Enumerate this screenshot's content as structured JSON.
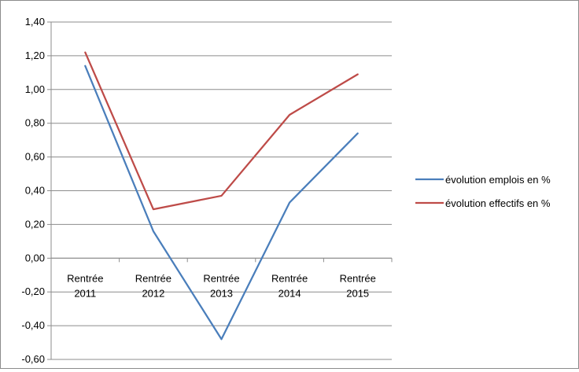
{
  "chart_data": {
    "type": "line",
    "categories": [
      [
        "Rentrée",
        "2011"
      ],
      [
        "Rentrée",
        "2012"
      ],
      [
        "Rentrée",
        "2013"
      ],
      [
        "Rentrée",
        "2014"
      ],
      [
        "Rentrée",
        "2015"
      ]
    ],
    "series": [
      {
        "name": "évolution emplois en %",
        "color": "#4a7ebb",
        "values": [
          1.14,
          0.16,
          -0.48,
          0.33,
          0.74
        ]
      },
      {
        "name": "évolution effectifs en %",
        "color": "#be4b48",
        "values": [
          1.22,
          0.29,
          0.37,
          0.85,
          1.09
        ]
      }
    ],
    "y_ticks": [
      "1,40",
      "1,20",
      "1,00",
      "0,80",
      "0,60",
      "0,40",
      "0,20",
      "0,00",
      "-0,20",
      "-0,40",
      "-0,60"
    ],
    "ylim": [
      -0.6,
      1.4
    ],
    "grid": true,
    "legend_position": "right",
    "title": "",
    "xlabel": "",
    "ylabel": ""
  }
}
